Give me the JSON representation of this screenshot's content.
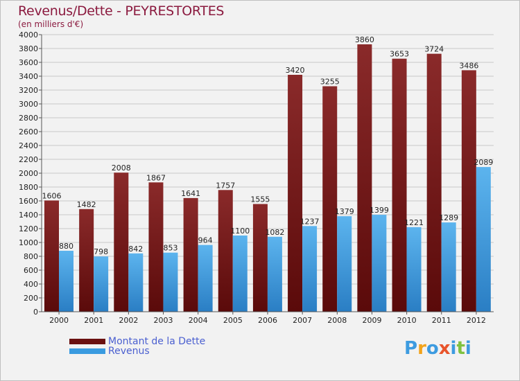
{
  "chart_data": {
    "type": "bar",
    "title": "Revenus/Dette - PEYRESTORTES",
    "subtitle": "(en milliers d'€)",
    "xlabel": "",
    "ylabel": "",
    "ylim": [
      0,
      4000
    ],
    "ytick_step": 200,
    "grid": true,
    "categories": [
      "2000",
      "2001",
      "2002",
      "2003",
      "2004",
      "2005",
      "2006",
      "2007",
      "2008",
      "2009",
      "2010",
      "2011",
      "2012"
    ],
    "series": [
      {
        "name": "Montant de la Dette",
        "color": "#7a1c1c",
        "values": [
          1606,
          1482,
          2008,
          1867,
          1641,
          1757,
          1555,
          3420,
          3255,
          3860,
          3653,
          3724,
          3486
        ]
      },
      {
        "name": "Revenus",
        "color": "#3a9be0",
        "values": [
          880,
          798,
          842,
          853,
          964,
          1100,
          1082,
          1237,
          1379,
          1399,
          1221,
          1289,
          2089
        ]
      }
    ],
    "legend_position": "bottom-left"
  },
  "logo": {
    "letters": [
      "P",
      "r",
      "o",
      "x",
      "i",
      "t",
      "i"
    ],
    "colors": [
      "#3d9be0",
      "#f2a31b",
      "#3d9be0",
      "#e8542b",
      "#3d9be0",
      "#7fc241",
      "#3d9be0"
    ]
  }
}
